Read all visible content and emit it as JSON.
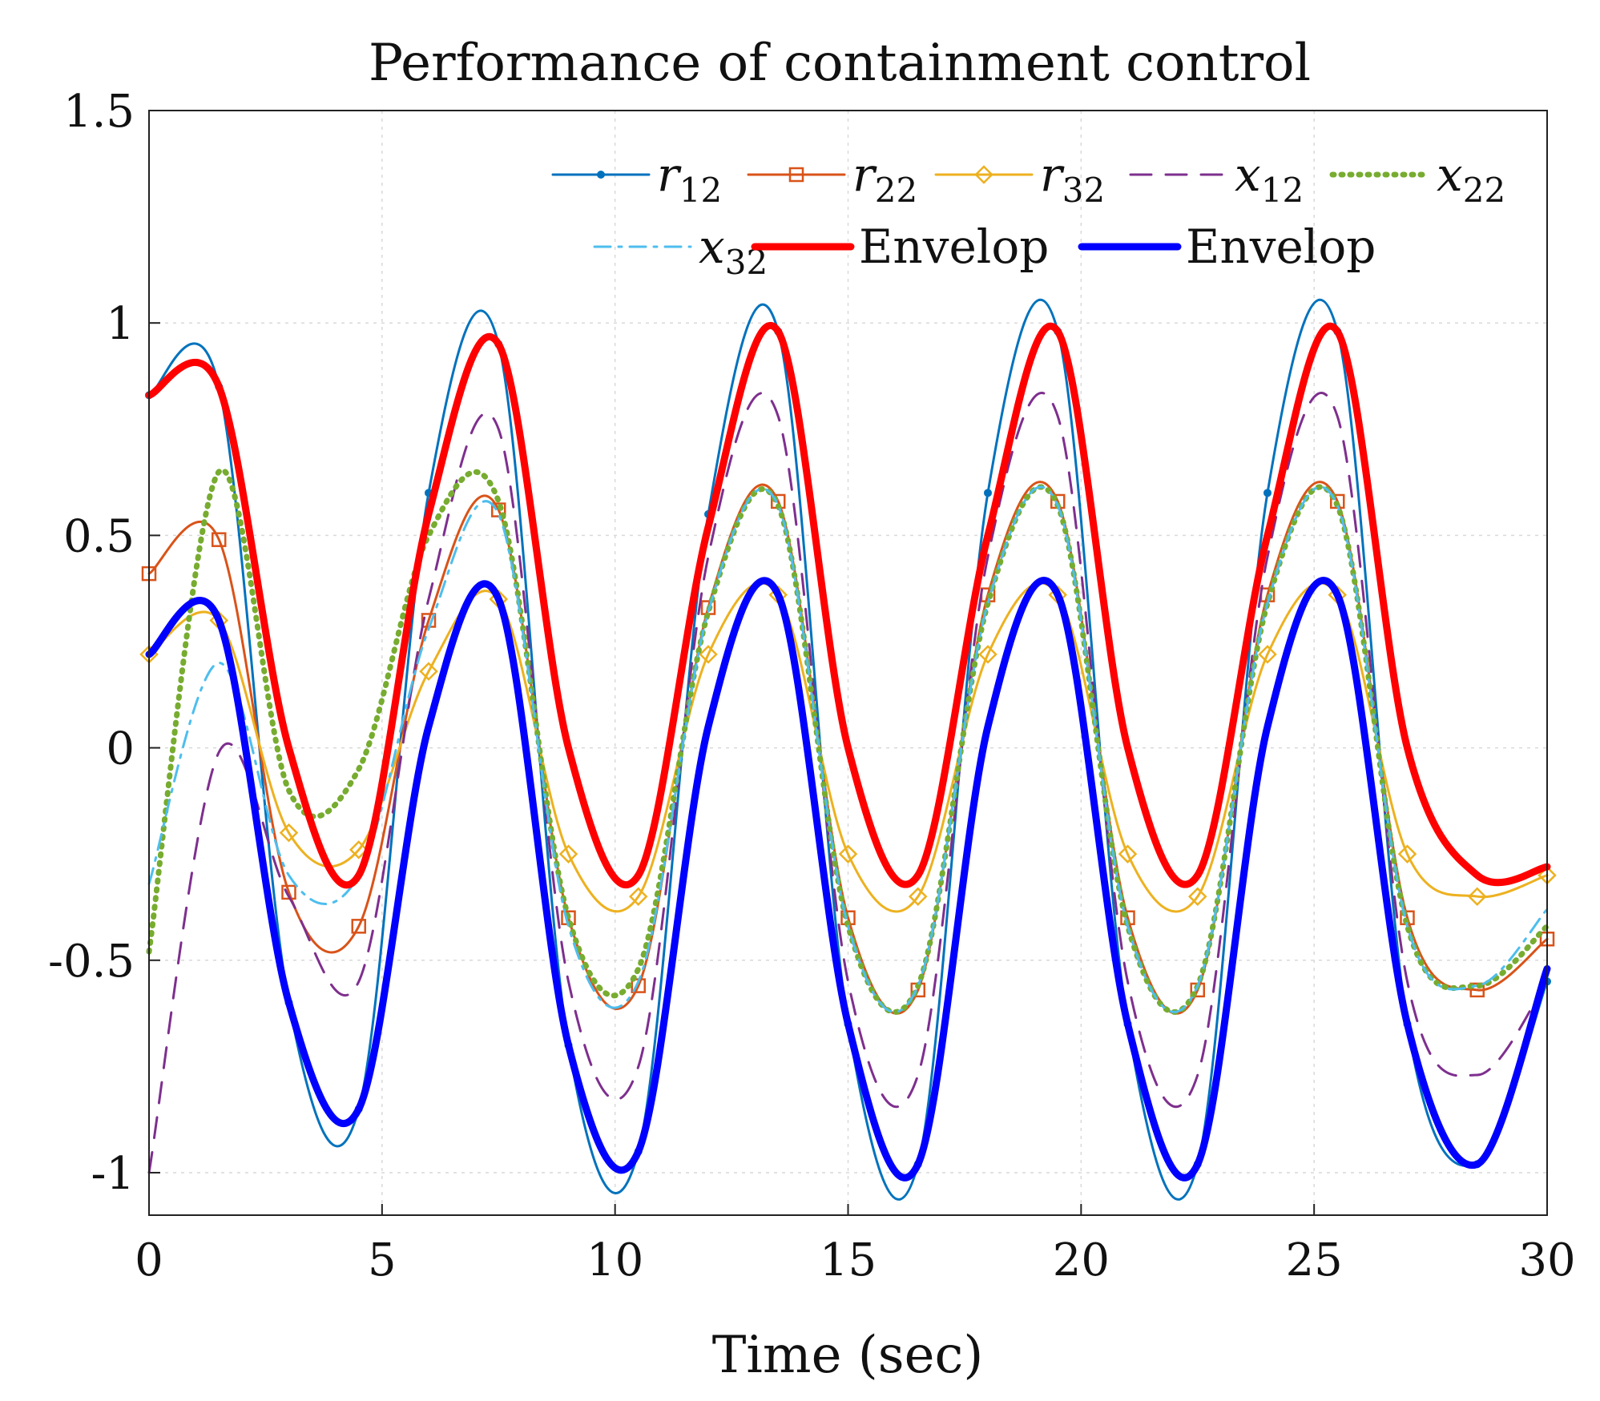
{
  "chart_data": {
    "type": "line",
    "title": "Performance of containment control",
    "xlabel": "Time (sec)",
    "ylabel": "",
    "xlim": [
      0,
      30
    ],
    "ylim": [
      -1.1,
      1.5
    ],
    "xticks": [
      0,
      5,
      10,
      15,
      20,
      25,
      30
    ],
    "xtick_labels": [
      "0",
      "5",
      "10",
      "15",
      "20",
      "25",
      "30"
    ],
    "yticks": [
      -1,
      -0.5,
      0,
      0.5,
      1,
      1.5
    ],
    "ytick_labels": [
      "-1",
      "-0.5",
      "0",
      "0.5",
      "1",
      "1.5"
    ],
    "grid": true,
    "legend_position": "top-right",
    "x": [
      0,
      1.5,
      3,
      4.5,
      6,
      7.5,
      9,
      10.5,
      12,
      13.5,
      15,
      16.5,
      18,
      19.5,
      21,
      22.5,
      24,
      25.5,
      27,
      28.5,
      30
    ],
    "series": [
      {
        "name": "r",
        "subscript": "12",
        "color": "#0072bd",
        "marker": "dot",
        "style": "solid",
        "values": [
          0.83,
          0.85,
          -0.6,
          -0.85,
          0.6,
          0.95,
          -0.7,
          -0.95,
          0.55,
          0.98,
          -0.65,
          -0.98,
          0.6,
          0.98,
          -0.65,
          -0.98,
          0.6,
          0.98,
          -0.65,
          -0.98,
          -0.55
        ]
      },
      {
        "name": "r",
        "subscript": "22",
        "color": "#d95319",
        "marker": "square",
        "style": "solid",
        "values": [
          0.41,
          0.49,
          -0.34,
          -0.42,
          0.3,
          0.56,
          -0.4,
          -0.56,
          0.33,
          0.58,
          -0.4,
          -0.57,
          0.36,
          0.58,
          -0.4,
          -0.57,
          0.36,
          0.58,
          -0.4,
          -0.57,
          -0.45
        ]
      },
      {
        "name": "r",
        "subscript": "32",
        "color": "#edb120",
        "marker": "diamond",
        "style": "solid",
        "values": [
          0.22,
          0.3,
          -0.2,
          -0.24,
          0.18,
          0.35,
          -0.25,
          -0.35,
          0.22,
          0.36,
          -0.25,
          -0.35,
          0.22,
          0.36,
          -0.25,
          -0.35,
          0.22,
          0.36,
          -0.25,
          -0.35,
          -0.3
        ]
      },
      {
        "name": "x",
        "subscript": "12",
        "color": "#7e2f8e",
        "marker": "none",
        "style": "dashed",
        "values": [
          -1.0,
          -0.01,
          -0.35,
          -0.55,
          0.35,
          0.75,
          -0.55,
          -0.75,
          0.45,
          0.78,
          -0.55,
          -0.77,
          0.45,
          0.78,
          -0.55,
          -0.77,
          0.45,
          0.78,
          -0.55,
          -0.77,
          -0.55
        ]
      },
      {
        "name": "x",
        "subscript": "22",
        "color": "#77ac30",
        "marker": "none",
        "style": "dotted",
        "values": [
          -0.48,
          0.65,
          -0.1,
          -0.05,
          0.5,
          0.58,
          -0.4,
          -0.52,
          0.32,
          0.57,
          -0.42,
          -0.56,
          0.34,
          0.57,
          -0.42,
          -0.56,
          0.34,
          0.57,
          -0.42,
          -0.56,
          -0.42
        ]
      },
      {
        "name": "x",
        "subscript": "32",
        "color": "#4dbeee",
        "marker": "none",
        "style": "dashdot",
        "values": [
          -0.32,
          0.2,
          -0.3,
          -0.3,
          0.28,
          0.55,
          -0.42,
          -0.55,
          0.32,
          0.57,
          -0.42,
          -0.56,
          0.34,
          0.57,
          -0.42,
          -0.56,
          0.34,
          0.57,
          -0.42,
          -0.56,
          -0.38
        ]
      },
      {
        "name": "Envelop",
        "subscript": "",
        "color": "#ff0000",
        "marker": "none",
        "style": "thick",
        "values": [
          0.83,
          0.85,
          0.0,
          -0.3,
          0.55,
          0.95,
          0.0,
          -0.3,
          0.52,
          0.98,
          0.0,
          -0.3,
          0.5,
          0.98,
          0.0,
          -0.3,
          0.5,
          0.98,
          0.0,
          -0.3,
          -0.28
        ]
      },
      {
        "name": "Envelop",
        "subscript": "",
        "color": "#0000ff",
        "marker": "none",
        "style": "thick",
        "values": [
          0.22,
          0.3,
          -0.6,
          -0.85,
          0.05,
          0.35,
          -0.7,
          -0.95,
          0.05,
          0.36,
          -0.65,
          -0.98,
          0.05,
          0.36,
          -0.65,
          -0.98,
          0.05,
          0.36,
          -0.65,
          -0.98,
          -0.52
        ]
      }
    ]
  }
}
